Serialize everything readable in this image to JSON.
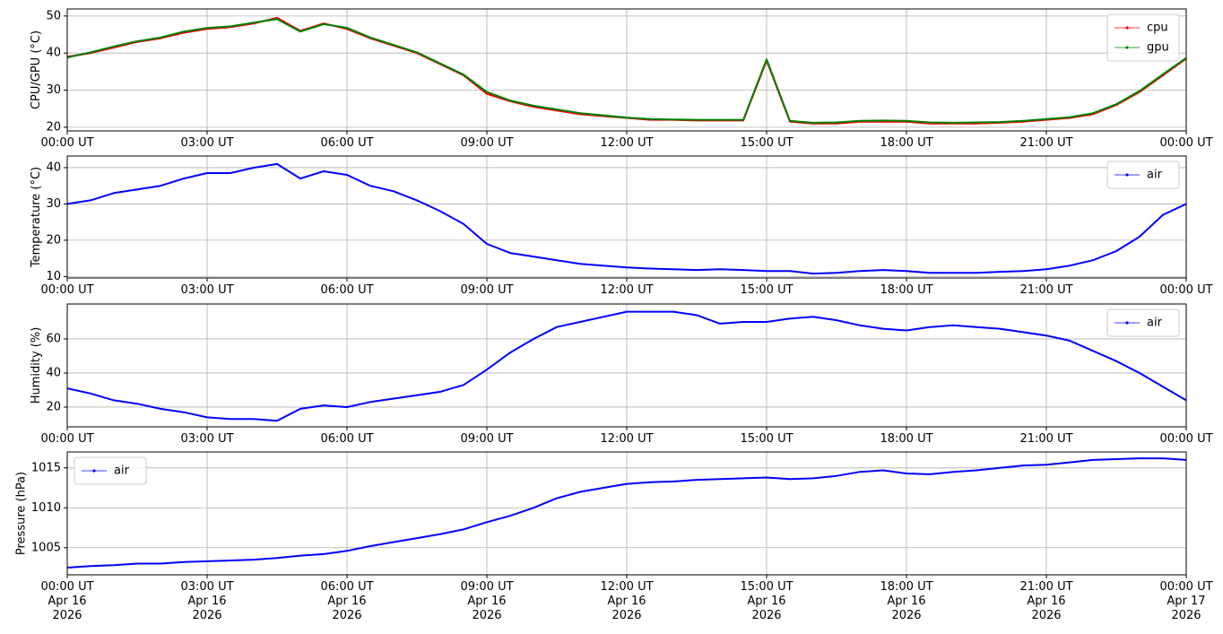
{
  "chart_data": [
    {
      "type": "line",
      "ylabel": "CPU/GPU (°C)",
      "grid": true,
      "legend": "upper right",
      "x": [
        0,
        0.5,
        1,
        1.5,
        2,
        2.5,
        3,
        3.5,
        4,
        4.5,
        5,
        5.5,
        6,
        6.5,
        7,
        7.5,
        8,
        8.5,
        9,
        9.5,
        10,
        10.5,
        11,
        11.5,
        12,
        12.5,
        13,
        13.5,
        14,
        14.5,
        15,
        15.5,
        16,
        16.5,
        17,
        17.5,
        18,
        18.5,
        19,
        19.5,
        20,
        20.5,
        21,
        21.5,
        22,
        22.5,
        23,
        23.5,
        24
      ],
      "xlim": [
        0,
        24
      ],
      "xticks": [
        {
          "value": 0,
          "label": "00:00 UT"
        },
        {
          "value": 3,
          "label": "03:00 UT"
        },
        {
          "value": 6,
          "label": "06:00 UT"
        },
        {
          "value": 9,
          "label": "09:00 UT"
        },
        {
          "value": 12,
          "label": "12:00 UT"
        },
        {
          "value": 15,
          "label": "15:00 UT"
        },
        {
          "value": 18,
          "label": "18:00 UT"
        },
        {
          "value": 21,
          "label": "21:00 UT"
        },
        {
          "value": 24,
          "label": "00:00 UT"
        }
      ],
      "ylim": [
        19,
        51.9
      ],
      "yticks": [
        20,
        30,
        40,
        50
      ],
      "series": [
        {
          "name": "cpu",
          "color": "#ff0000",
          "values": [
            39,
            40,
            41.5,
            43,
            44,
            45.5,
            46.5,
            47,
            48,
            49.5,
            46,
            48,
            46.5,
            44,
            42,
            40,
            37,
            34,
            29,
            27,
            25.5,
            24.5,
            23.5,
            23,
            22.5,
            22,
            22,
            21.8,
            21.8,
            21.8,
            38,
            21.5,
            21,
            21,
            21.5,
            21.5,
            21.5,
            21,
            21,
            21,
            21.2,
            21.5,
            22,
            22.5,
            23.5,
            26,
            29.5,
            34,
            38.5
          ]
        },
        {
          "name": "gpu",
          "color": "#008000",
          "values": [
            38.8,
            40.2,
            41.8,
            43.2,
            44.2,
            45.8,
            46.8,
            47.2,
            48.2,
            49.2,
            45.8,
            47.8,
            46.8,
            44.2,
            42.2,
            40.2,
            37.2,
            34.2,
            29.5,
            27.2,
            25.8,
            24.8,
            23.8,
            23.2,
            22.6,
            22.2,
            22.1,
            22,
            22,
            22,
            38.3,
            21.7,
            21.2,
            21.3,
            21.7,
            21.8,
            21.7,
            21.3,
            21.2,
            21.3,
            21.4,
            21.7,
            22.2,
            22.7,
            23.8,
            26.2,
            29.8,
            34.3,
            38.7
          ]
        }
      ]
    },
    {
      "type": "line",
      "ylabel": "Temperature (°C)",
      "grid": true,
      "legend": "upper right",
      "x": [
        0,
        0.5,
        1,
        1.5,
        2,
        2.5,
        3,
        3.5,
        4,
        4.5,
        5,
        5.5,
        6,
        6.5,
        7,
        7.5,
        8,
        8.5,
        9,
        9.5,
        10,
        10.5,
        11,
        11.5,
        12,
        12.5,
        13,
        13.5,
        14,
        14.5,
        15,
        15.5,
        16,
        16.5,
        17,
        17.5,
        18,
        18.5,
        19,
        19.5,
        20,
        20.5,
        21,
        21.5,
        22,
        22.5,
        23,
        23.5,
        24
      ],
      "xlim": [
        0,
        24
      ],
      "xticks": [
        {
          "value": 0,
          "label": "00:00 UT"
        },
        {
          "value": 3,
          "label": "03:00 UT"
        },
        {
          "value": 6,
          "label": "06:00 UT"
        },
        {
          "value": 9,
          "label": "09:00 UT"
        },
        {
          "value": 12,
          "label": "12:00 UT"
        },
        {
          "value": 15,
          "label": "15:00 UT"
        },
        {
          "value": 18,
          "label": "18:00 UT"
        },
        {
          "value": 21,
          "label": "21:00 UT"
        },
        {
          "value": 24,
          "label": "00:00 UT"
        }
      ],
      "ylim": [
        9.6,
        43.2
      ],
      "yticks": [
        10,
        20,
        30,
        40
      ],
      "series": [
        {
          "name": "air",
          "color": "#0000ff",
          "values": [
            30,
            31,
            33,
            34,
            35,
            37,
            38.5,
            38.5,
            40,
            41,
            37,
            39,
            38,
            35,
            33.5,
            31,
            28,
            24.5,
            19,
            16.5,
            15.5,
            14.5,
            13.5,
            13,
            12.5,
            12.2,
            12,
            11.8,
            12,
            11.8,
            11.5,
            11.5,
            10.8,
            11,
            11.5,
            11.8,
            11.5,
            11,
            11,
            11,
            11.3,
            11.5,
            12,
            13,
            14.5,
            17,
            21,
            27,
            30
          ]
        }
      ]
    },
    {
      "type": "line",
      "ylabel": "Humidity (%)",
      "grid": true,
      "legend": "upper right",
      "x": [
        0,
        0.5,
        1,
        1.5,
        2,
        2.5,
        3,
        3.5,
        4,
        4.5,
        5,
        5.5,
        6,
        6.5,
        7,
        7.5,
        8,
        8.5,
        9,
        9.5,
        10,
        10.5,
        11,
        11.5,
        12,
        12.5,
        13,
        13.5,
        14,
        14.5,
        15,
        15.5,
        16,
        16.5,
        17,
        17.5,
        18,
        18.5,
        19,
        19.5,
        20,
        20.5,
        21,
        21.5,
        22,
        22.5,
        23,
        23.5,
        24
      ],
      "xlim": [
        0,
        24
      ],
      "xticks": [
        {
          "value": 0,
          "label": "00:00 UT"
        },
        {
          "value": 3,
          "label": "03:00 UT"
        },
        {
          "value": 6,
          "label": "06:00 UT"
        },
        {
          "value": 9,
          "label": "09:00 UT"
        },
        {
          "value": 12,
          "label": "12:00 UT"
        },
        {
          "value": 15,
          "label": "15:00 UT"
        },
        {
          "value": 18,
          "label": "18:00 UT"
        },
        {
          "value": 21,
          "label": "21:00 UT"
        },
        {
          "value": 24,
          "label": "00:00 UT"
        }
      ],
      "ylim": [
        8.4,
        80.5
      ],
      "yticks": [
        20,
        40,
        60
      ],
      "series": [
        {
          "name": "air",
          "color": "#0000ff",
          "values": [
            31,
            28,
            24,
            22,
            19,
            17,
            14,
            13,
            13,
            12,
            19,
            21,
            20,
            23,
            25,
            27,
            29,
            33,
            42,
            52,
            60,
            67,
            70,
            73,
            76,
            76,
            76,
            74,
            69,
            70,
            70,
            72,
            73,
            71,
            68,
            66,
            65,
            67,
            68,
            67,
            66,
            64,
            62,
            59,
            53,
            47,
            40,
            32,
            24
          ]
        }
      ]
    },
    {
      "type": "line",
      "ylabel": "Pressure (hPa)",
      "grid": true,
      "legend": "upper left",
      "x": [
        0,
        0.5,
        1,
        1.5,
        2,
        2.5,
        3,
        3.5,
        4,
        4.5,
        5,
        5.5,
        6,
        6.5,
        7,
        7.5,
        8,
        8.5,
        9,
        9.5,
        10,
        10.5,
        11,
        11.5,
        12,
        12.5,
        13,
        13.5,
        14,
        14.5,
        15,
        15.5,
        16,
        16.5,
        17,
        17.5,
        18,
        18.5,
        19,
        19.5,
        20,
        20.5,
        21,
        21.5,
        22,
        22.5,
        23,
        23.5,
        24
      ],
      "xlim": [
        0,
        24
      ],
      "xticks": [
        {
          "value": 0,
          "label": "00:00 UT\nApr 16\n2026"
        },
        {
          "value": 3,
          "label": "03:00 UT\nApr 16\n2026"
        },
        {
          "value": 6,
          "label": "06:00 UT\nApr 16\n2026"
        },
        {
          "value": 9,
          "label": "09:00 UT\nApr 16\n2026"
        },
        {
          "value": 12,
          "label": "12:00 UT\nApr 16\n2026"
        },
        {
          "value": 15,
          "label": "15:00 UT\nApr 16\n2026"
        },
        {
          "value": 18,
          "label": "18:00 UT\nApr 16\n2026"
        },
        {
          "value": 21,
          "label": "21:00 UT\nApr 16\n2026"
        },
        {
          "value": 24,
          "label": "00:00 UT\nApr 17\n2026"
        }
      ],
      "ylim": [
        1001.6,
        1017
      ],
      "yticks": [
        1005,
        1010,
        1015
      ],
      "series": [
        {
          "name": "air",
          "color": "#0000ff",
          "values": [
            1002.5,
            1002.7,
            1002.8,
            1003,
            1003,
            1003.2,
            1003.3,
            1003.4,
            1003.5,
            1003.7,
            1004,
            1004.2,
            1004.6,
            1005.2,
            1005.7,
            1006.2,
            1006.7,
            1007.3,
            1008.2,
            1009,
            1010,
            1011.2,
            1012,
            1012.5,
            1013,
            1013.2,
            1013.3,
            1013.5,
            1013.6,
            1013.7,
            1013.8,
            1013.6,
            1013.7,
            1014,
            1014.5,
            1014.7,
            1014.3,
            1014.2,
            1014.5,
            1014.7,
            1015,
            1015.3,
            1015.4,
            1015.7,
            1016,
            1016.1,
            1016.2,
            1016.2,
            1016
          ]
        }
      ]
    }
  ]
}
